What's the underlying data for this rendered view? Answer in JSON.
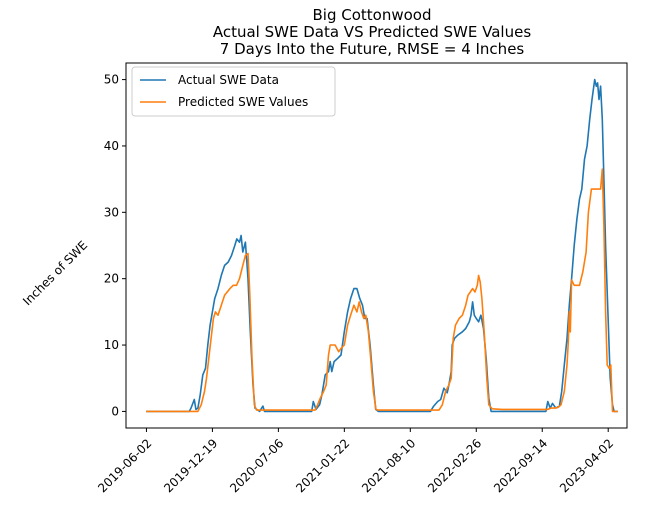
{
  "chart_data": {
    "type": "line",
    "title_lines": [
      "Big Cottonwood",
      "Actual SWE Data VS Predicted SWE Values",
      "7 Days Into the Future, RMSE = 4 Inches"
    ],
    "xlabel": "",
    "ylabel": "Inches of SWE",
    "x_scale": "date",
    "xlim": [
      "2019-04-01",
      "2023-05-29"
    ],
    "ylim": [
      -2.5,
      52.5
    ],
    "x_ticks": [
      "2019-06-02",
      "2019-12-19",
      "2020-07-06",
      "2021-01-22",
      "2021-08-10",
      "2022-02-26",
      "2022-09-14",
      "2023-04-02"
    ],
    "y_ticks": [
      0,
      10,
      20,
      30,
      40,
      50
    ],
    "grid": false,
    "legend_position": "top-left",
    "series": [
      {
        "name": "Actual SWE Data",
        "color": "#1f77b4",
        "points": [
          [
            "2019-06-01",
            0
          ],
          [
            "2019-10-10",
            0
          ],
          [
            "2019-10-15",
            0.5
          ],
          [
            "2019-10-25",
            1.8
          ],
          [
            "2019-10-30",
            0.3
          ],
          [
            "2019-11-05",
            0.5
          ],
          [
            "2019-11-12",
            2.5
          ],
          [
            "2019-11-20",
            5.5
          ],
          [
            "2019-11-28",
            6.5
          ],
          [
            "2019-12-05",
            10
          ],
          [
            "2019-12-12",
            13
          ],
          [
            "2019-12-19",
            15
          ],
          [
            "2019-12-26",
            17
          ],
          [
            "2020-01-05",
            18.5
          ],
          [
            "2020-01-15",
            20.5
          ],
          [
            "2020-01-25",
            22
          ],
          [
            "2020-02-05",
            22.5
          ],
          [
            "2020-02-15",
            23.5
          ],
          [
            "2020-02-25",
            25
          ],
          [
            "2020-03-02",
            26
          ],
          [
            "2020-03-10",
            25.5
          ],
          [
            "2020-03-15",
            26.5
          ],
          [
            "2020-03-20",
            24
          ],
          [
            "2020-03-28",
            25.5
          ],
          [
            "2020-04-05",
            20
          ],
          [
            "2020-04-12",
            12
          ],
          [
            "2020-04-20",
            4
          ],
          [
            "2020-04-26",
            0.5
          ],
          [
            "2020-05-10",
            0
          ],
          [
            "2020-05-20",
            0.8
          ],
          [
            "2020-05-25",
            0
          ],
          [
            "2020-10-15",
            0
          ],
          [
            "2020-10-20",
            1.5
          ],
          [
            "2020-10-28",
            0.3
          ],
          [
            "2020-11-08",
            1
          ],
          [
            "2020-11-15",
            2.5
          ],
          [
            "2020-11-25",
            5.5
          ],
          [
            "2020-12-05",
            6
          ],
          [
            "2020-12-10",
            7.5
          ],
          [
            "2020-12-15",
            6
          ],
          [
            "2020-12-22",
            7.5
          ],
          [
            "2021-01-02",
            8
          ],
          [
            "2021-01-12",
            8.5
          ],
          [
            "2021-01-22",
            12
          ],
          [
            "2021-02-01",
            15
          ],
          [
            "2021-02-10",
            17
          ],
          [
            "2021-02-20",
            18.5
          ],
          [
            "2021-03-01",
            18.5
          ],
          [
            "2021-03-10",
            17
          ],
          [
            "2021-03-18",
            16
          ],
          [
            "2021-03-25",
            14
          ],
          [
            "2021-04-01",
            14
          ],
          [
            "2021-04-10",
            10
          ],
          [
            "2021-04-20",
            4
          ],
          [
            "2021-04-27",
            0.3
          ],
          [
            "2021-05-05",
            0
          ],
          [
            "2021-10-10",
            0
          ],
          [
            "2021-10-20",
            0.8
          ],
          [
            "2021-11-01",
            1.5
          ],
          [
            "2021-11-10",
            1.8
          ],
          [
            "2021-11-20",
            3.5
          ],
          [
            "2021-11-30",
            2.8
          ],
          [
            "2021-12-05",
            4
          ],
          [
            "2021-12-12",
            6
          ],
          [
            "2021-12-15",
            10
          ],
          [
            "2021-12-22",
            11
          ],
          [
            "2022-01-01",
            11.5
          ],
          [
            "2022-01-15",
            12
          ],
          [
            "2022-01-25",
            12.5
          ],
          [
            "2022-02-05",
            13.5
          ],
          [
            "2022-02-10",
            14.5
          ],
          [
            "2022-02-15",
            16.5
          ],
          [
            "2022-02-20",
            14.5
          ],
          [
            "2022-02-26",
            14
          ],
          [
            "2022-03-05",
            13.5
          ],
          [
            "2022-03-12",
            14.5
          ],
          [
            "2022-03-20",
            12.5
          ],
          [
            "2022-03-28",
            8
          ],
          [
            "2022-04-05",
            2
          ],
          [
            "2022-04-12",
            0
          ],
          [
            "2022-05-15",
            0
          ],
          [
            "2022-09-05",
            0
          ],
          [
            "2022-09-25",
            0
          ],
          [
            "2022-10-01",
            1.5
          ],
          [
            "2022-10-08",
            0.5
          ],
          [
            "2022-10-15",
            1.2
          ],
          [
            "2022-10-25",
            0.5
          ],
          [
            "2022-11-05",
            0.8
          ],
          [
            "2022-11-12",
            3
          ],
          [
            "2022-11-20",
            7
          ],
          [
            "2022-11-28",
            11
          ],
          [
            "2022-12-05",
            16
          ],
          [
            "2022-12-12",
            20
          ],
          [
            "2022-12-20",
            25
          ],
          [
            "2022-12-28",
            29
          ],
          [
            "2023-01-05",
            32
          ],
          [
            "2023-01-12",
            33.5
          ],
          [
            "2023-01-20",
            38
          ],
          [
            "2023-01-28",
            40
          ],
          [
            "2023-02-05",
            44
          ],
          [
            "2023-02-12",
            47
          ],
          [
            "2023-02-20",
            50
          ],
          [
            "2023-02-25",
            49
          ],
          [
            "2023-03-01",
            49.5
          ],
          [
            "2023-03-05",
            47
          ],
          [
            "2023-03-10",
            49
          ],
          [
            "2023-03-15",
            44
          ],
          [
            "2023-03-20",
            35
          ],
          [
            "2023-03-25",
            25
          ],
          [
            "2023-04-01",
            15
          ],
          [
            "2023-04-08",
            5
          ],
          [
            "2023-04-15",
            1
          ],
          [
            "2023-04-20",
            0
          ],
          [
            "2023-05-01",
            0
          ]
        ]
      },
      {
        "name": "Predicted SWE Values",
        "color": "#ff7f0e",
        "points": [
          [
            "2019-06-01",
            0
          ],
          [
            "2019-11-05",
            0
          ],
          [
            "2019-11-15",
            1
          ],
          [
            "2019-11-25",
            3
          ],
          [
            "2019-12-01",
            5
          ],
          [
            "2019-12-08",
            8
          ],
          [
            "2019-12-15",
            11
          ],
          [
            "2019-12-22",
            14
          ],
          [
            "2019-12-28",
            15
          ],
          [
            "2020-01-05",
            14.5
          ],
          [
            "2020-01-15",
            16
          ],
          [
            "2020-01-25",
            17.5
          ],
          [
            "2020-02-10",
            18.5
          ],
          [
            "2020-02-20",
            19
          ],
          [
            "2020-03-01",
            19
          ],
          [
            "2020-03-10",
            20
          ],
          [
            "2020-03-20",
            22
          ],
          [
            "2020-03-28",
            23.5
          ],
          [
            "2020-04-05",
            23.8
          ],
          [
            "2020-04-10",
            18
          ],
          [
            "2020-04-17",
            8
          ],
          [
            "2020-04-24",
            1
          ],
          [
            "2020-05-01",
            0.2
          ],
          [
            "2020-10-10",
            0.2
          ],
          [
            "2020-10-15",
            0.2
          ],
          [
            "2020-10-25",
            0.2
          ],
          [
            "2020-11-02",
            1
          ],
          [
            "2020-11-10",
            2
          ],
          [
            "2020-11-20",
            3
          ],
          [
            "2020-11-28",
            4
          ],
          [
            "2020-12-05",
            8.5
          ],
          [
            "2020-12-10",
            10
          ],
          [
            "2020-12-25",
            10
          ],
          [
            "2021-01-05",
            9
          ],
          [
            "2021-01-12",
            9.5
          ],
          [
            "2021-01-22",
            10
          ],
          [
            "2021-02-01",
            13
          ],
          [
            "2021-02-10",
            14.5
          ],
          [
            "2021-02-20",
            16
          ],
          [
            "2021-03-01",
            15
          ],
          [
            "2021-03-08",
            16.5
          ],
          [
            "2021-03-15",
            15
          ],
          [
            "2021-03-22",
            14
          ],
          [
            "2021-03-28",
            14.5
          ],
          [
            "2021-04-05",
            12
          ],
          [
            "2021-04-12",
            8
          ],
          [
            "2021-04-20",
            3
          ],
          [
            "2021-04-28",
            0.3
          ],
          [
            "2021-05-05",
            0.2
          ],
          [
            "2021-11-05",
            0.2
          ],
          [
            "2021-11-15",
            1
          ],
          [
            "2021-11-25",
            3
          ],
          [
            "2021-12-05",
            4
          ],
          [
            "2021-12-12",
            5
          ],
          [
            "2021-12-18",
            11
          ],
          [
            "2021-12-25",
            13
          ],
          [
            "2022-01-05",
            14
          ],
          [
            "2022-01-15",
            14.5
          ],
          [
            "2022-01-25",
            16
          ],
          [
            "2022-02-01",
            17.5
          ],
          [
            "2022-02-08",
            18
          ],
          [
            "2022-02-15",
            18.5
          ],
          [
            "2022-02-22",
            18
          ],
          [
            "2022-03-01",
            19
          ],
          [
            "2022-03-05",
            20.5
          ],
          [
            "2022-03-10",
            19.5
          ],
          [
            "2022-03-15",
            17
          ],
          [
            "2022-03-22",
            12
          ],
          [
            "2022-03-30",
            5
          ],
          [
            "2022-04-05",
            1
          ],
          [
            "2022-04-15",
            0.4
          ],
          [
            "2022-05-15",
            0.3
          ],
          [
            "2022-10-01",
            0.3
          ],
          [
            "2022-10-10",
            0.5
          ],
          [
            "2022-10-20",
            0.5
          ],
          [
            "2022-11-01",
            0.6
          ],
          [
            "2022-11-10",
            1
          ],
          [
            "2022-11-20",
            3
          ],
          [
            "2022-11-28",
            7
          ],
          [
            "2022-12-02",
            10.5
          ],
          [
            "2022-12-05",
            15
          ],
          [
            "2022-12-08",
            12
          ],
          [
            "2022-12-12",
            19.8
          ],
          [
            "2022-12-20",
            19
          ],
          [
            "2023-01-05",
            19
          ],
          [
            "2023-01-15",
            21
          ],
          [
            "2023-01-25",
            24
          ],
          [
            "2023-02-01",
            30
          ],
          [
            "2023-02-10",
            33.5
          ],
          [
            "2023-03-01",
            33.5
          ],
          [
            "2023-03-10",
            33.5
          ],
          [
            "2023-03-15",
            36.5
          ],
          [
            "2023-03-20",
            28
          ],
          [
            "2023-03-25",
            15
          ],
          [
            "2023-03-30",
            7
          ],
          [
            "2023-04-05",
            6.5
          ],
          [
            "2023-04-10",
            7
          ],
          [
            "2023-04-15",
            0
          ],
          [
            "2023-05-01",
            0
          ]
        ]
      }
    ]
  }
}
